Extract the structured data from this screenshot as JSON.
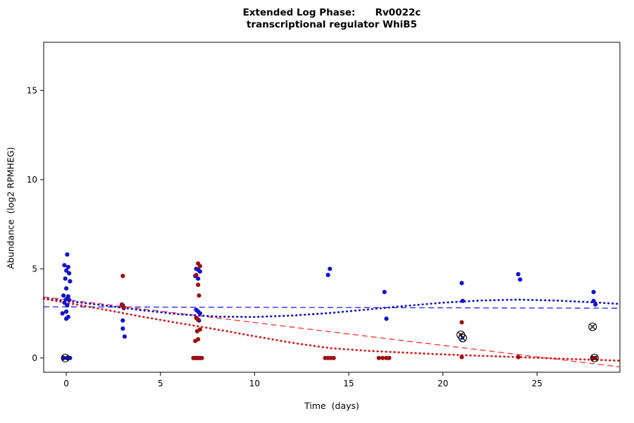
{
  "chart_data": {
    "type": "scatter",
    "title_line1": "Extended Log Phase:      Rv0022c",
    "title_line2": "transcriptional regulator WhiB5",
    "xlabel": "Time  (days)",
    "ylabel": "Abundance  (log2 RPMHEG)",
    "xlim": [
      -1.2,
      29.4
    ],
    "ylim": [
      -0.8,
      17.7
    ],
    "xticks": [
      0,
      5,
      10,
      15,
      20,
      25
    ],
    "yticks": [
      0,
      5,
      10,
      15
    ],
    "grid": false,
    "legend": "none",
    "colors": {
      "blue_points": "#1414cd",
      "red_points": "#9e1010",
      "blue_dashed": "#2222ff",
      "blue_dotted": "#1111cc",
      "red_dashed": "#ff3030",
      "red_dotted": "#dd1111",
      "marker_outline": "#000000"
    },
    "series": [
      {
        "name": "blue-condition",
        "color": "#1414cd",
        "points": [
          [
            0.05,
            5.8
          ],
          [
            -0.1,
            5.2
          ],
          [
            0.1,
            5.1
          ],
          [
            0,
            4.9
          ],
          [
            0.15,
            4.75
          ],
          [
            -0.05,
            4.45
          ],
          [
            0.2,
            4.3
          ],
          [
            0,
            3.9
          ],
          [
            -0.15,
            3.5
          ],
          [
            0.1,
            3.45
          ],
          [
            0,
            3.3
          ],
          [
            0.15,
            3.25
          ],
          [
            -0.1,
            3.1
          ],
          [
            0.05,
            2.95
          ],
          [
            0,
            2.6
          ],
          [
            -0.2,
            2.5
          ],
          [
            0.1,
            2.3
          ],
          [
            0,
            2.2
          ],
          [
            -0.15,
            0
          ],
          [
            0.05,
            0
          ],
          [
            0.2,
            0
          ],
          [
            3,
            2.95
          ],
          [
            3.05,
            2.8
          ],
          [
            3,
            2.1
          ],
          [
            3,
            1.65
          ],
          [
            3.1,
            1.2
          ],
          [
            6.9,
            5.0
          ],
          [
            7.0,
            4.95
          ],
          [
            7.1,
            4.85
          ],
          [
            6.85,
            4.6
          ],
          [
            7.0,
            4.45
          ],
          [
            6.9,
            2.7
          ],
          [
            7.0,
            2.6
          ],
          [
            7.1,
            2.5
          ],
          [
            6.95,
            2.2
          ],
          [
            7.05,
            2.1
          ],
          [
            6.8,
            0
          ],
          [
            6.95,
            0
          ],
          [
            7.1,
            0
          ],
          [
            14.0,
            5.0
          ],
          [
            13.9,
            4.65
          ],
          [
            16.9,
            3.7
          ],
          [
            17.0,
            2.2
          ],
          [
            21.0,
            4.2
          ],
          [
            21.05,
            3.2
          ],
          [
            24.0,
            4.7
          ],
          [
            24.1,
            4.4
          ],
          [
            28.0,
            3.7
          ],
          [
            28.0,
            3.2
          ],
          [
            28.1,
            3.0
          ]
        ]
      },
      {
        "name": "red-condition",
        "color": "#9e1010",
        "points": [
          [
            3,
            4.6
          ],
          [
            2.95,
            3.0
          ],
          [
            3.05,
            2.85
          ],
          [
            7.0,
            5.3
          ],
          [
            7.1,
            5.15
          ],
          [
            6.9,
            4.65
          ],
          [
            7.0,
            4.1
          ],
          [
            7.05,
            3.5
          ],
          [
            6.9,
            2.25
          ],
          [
            7.0,
            2.15
          ],
          [
            7.1,
            1.6
          ],
          [
            6.95,
            1.5
          ],
          [
            7.0,
            1.05
          ],
          [
            6.85,
            0.95
          ],
          [
            6.75,
            0
          ],
          [
            6.9,
            0
          ],
          [
            7.05,
            0
          ],
          [
            7.2,
            0
          ],
          [
            13.75,
            0
          ],
          [
            13.9,
            0
          ],
          [
            14.05,
            0
          ],
          [
            14.2,
            0
          ],
          [
            16.6,
            0
          ],
          [
            16.8,
            0
          ],
          [
            17.0,
            0
          ],
          [
            17.15,
            0
          ],
          [
            21.0,
            2.0
          ],
          [
            21.0,
            0.05
          ],
          [
            24.0,
            0.05
          ],
          [
            27.95,
            0
          ],
          [
            28.1,
            0
          ]
        ]
      }
    ],
    "marked_points": {
      "name": "circle-cross-marker",
      "symbol": "circle-with-x",
      "points": [
        [
          -0.05,
          0,
          "#00008b"
        ],
        [
          20.95,
          1.3,
          "#8b0000"
        ],
        [
          21.05,
          1.12,
          "#00008b"
        ],
        [
          27.95,
          1.75,
          "#444444"
        ],
        [
          28.05,
          0,
          "#8b0000"
        ]
      ]
    },
    "lines": [
      {
        "name": "blue-dashed-fit",
        "style": "dashed",
        "color": "#2222ff",
        "points": [
          [
            -1.2,
            2.87
          ],
          [
            29.4,
            2.79
          ]
        ]
      },
      {
        "name": "red-dashed-fit",
        "style": "dashed",
        "color": "#ff3030",
        "points": [
          [
            -1.2,
            3.42
          ],
          [
            29.4,
            -0.5
          ]
        ]
      },
      {
        "name": "blue-dotted-smooth",
        "style": "dotted",
        "color": "#1111cc",
        "points": [
          [
            -1.2,
            3.35
          ],
          [
            0,
            3.2
          ],
          [
            2,
            2.95
          ],
          [
            4,
            2.68
          ],
          [
            6,
            2.45
          ],
          [
            8,
            2.32
          ],
          [
            10,
            2.3
          ],
          [
            12,
            2.38
          ],
          [
            14,
            2.52
          ],
          [
            16,
            2.72
          ],
          [
            18,
            2.92
          ],
          [
            20,
            3.1
          ],
          [
            22,
            3.22
          ],
          [
            24,
            3.27
          ],
          [
            26,
            3.22
          ],
          [
            28,
            3.12
          ],
          [
            29.4,
            3.03
          ]
        ]
      },
      {
        "name": "red-dotted-smooth",
        "style": "dotted",
        "color": "#dd1111",
        "points": [
          [
            -1.2,
            3.32
          ],
          [
            0,
            3.1
          ],
          [
            2,
            2.72
          ],
          [
            4,
            2.32
          ],
          [
            6,
            1.95
          ],
          [
            8,
            1.6
          ],
          [
            10,
            1.22
          ],
          [
            12,
            0.85
          ],
          [
            14,
            0.55
          ],
          [
            16,
            0.4
          ],
          [
            18,
            0.3
          ],
          [
            20,
            0.2
          ],
          [
            22,
            0.12
          ],
          [
            24,
            0.05
          ],
          [
            26,
            -0.03
          ],
          [
            28,
            -0.1
          ],
          [
            29.4,
            -0.15
          ]
        ]
      }
    ]
  }
}
